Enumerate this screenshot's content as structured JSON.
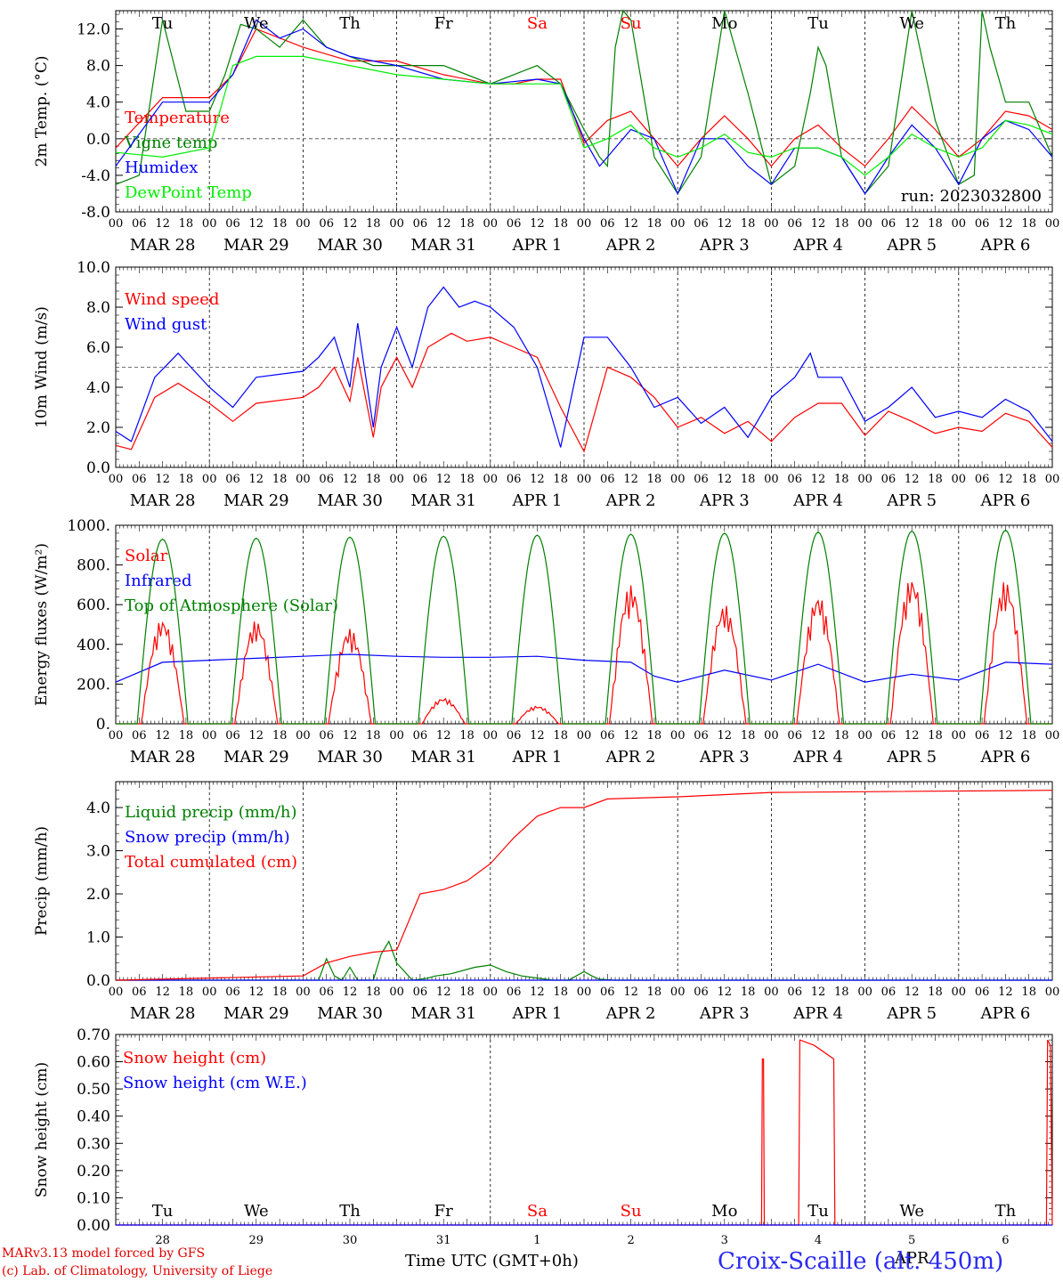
{
  "chart_data": [
    {
      "type": "line",
      "ylabel": "2m Temp. (°C)",
      "ylim": [
        -8,
        14
      ],
      "yticks": [
        "-8.0",
        "-4.0",
        "0.0",
        "4.0",
        "8.0",
        "12.0"
      ],
      "ref_line": 0,
      "run_label": "run: 2023032800",
      "weekdays": [
        "Tu",
        "We",
        "Th",
        "Fr",
        "Sa",
        "Su",
        "Mo",
        "Tu",
        "We",
        "Th"
      ],
      "series": [
        {
          "name": "Temperature",
          "color": "#ff0000",
          "x": [
            0,
            12,
            24,
            30,
            36,
            48,
            60,
            72,
            84,
            96,
            102,
            108,
            114,
            120,
            126,
            132,
            138,
            144,
            150,
            156,
            162,
            168,
            174,
            180,
            186,
            192,
            198,
            204,
            210,
            216,
            222,
            228,
            234,
            240
          ],
          "y": [
            -1,
            4.5,
            4.5,
            7,
            12,
            10,
            8.5,
            8.5,
            7,
            6,
            6,
            6.5,
            6.5,
            -0.5,
            2,
            3,
            0,
            -3,
            0,
            2.5,
            0,
            -3,
            0,
            1.5,
            -1,
            -3,
            0,
            3.5,
            1,
            -2,
            0,
            3,
            2.5,
            1
          ]
        },
        {
          "name": "Vigne temp",
          "color": "#008000",
          "x": [
            0,
            6,
            12,
            18,
            24,
            28,
            32,
            36,
            42,
            48,
            54,
            60,
            66,
            72,
            84,
            96,
            108,
            114,
            120,
            124,
            126,
            128,
            130,
            132,
            138,
            144,
            150,
            156,
            162,
            168,
            174,
            178,
            180,
            182,
            186,
            192,
            198,
            204,
            210,
            216,
            220,
            222,
            224,
            228,
            234,
            240
          ],
          "y": [
            -5,
            -4,
            13,
            3,
            3,
            7,
            12.5,
            12,
            10,
            13,
            10,
            9,
            8,
            8,
            8,
            6,
            8,
            6,
            1,
            -2,
            -3,
            10,
            14,
            13,
            -2,
            -6,
            -2,
            14,
            5,
            -5,
            -3,
            5,
            10,
            8,
            -2,
            -6,
            -3,
            14,
            2,
            -5,
            -4,
            14,
            10,
            4,
            4,
            -2
          ]
        },
        {
          "name": "Humidex",
          "color": "#0000ff",
          "x": [
            0,
            12,
            24,
            30,
            36,
            42,
            48,
            54,
            60,
            72,
            84,
            96,
            108,
            114,
            120,
            124,
            126,
            132,
            138,
            144,
            150,
            156,
            162,
            168,
            174,
            180,
            186,
            192,
            198,
            204,
            210,
            216,
            222,
            228,
            234,
            240
          ],
          "y": [
            -3,
            4,
            4,
            7,
            13,
            11,
            12,
            10,
            9,
            8,
            6.5,
            6,
            6.5,
            6,
            0,
            -3,
            -2,
            1,
            0,
            -6,
            0,
            0,
            -3,
            -5,
            -1,
            -1,
            -2,
            -6,
            -2,
            1.5,
            -1,
            -5,
            0,
            2,
            1,
            -2
          ]
        },
        {
          "name": "DewPoint Temp",
          "color": "#00ee00",
          "x": [
            0,
            12,
            24,
            30,
            36,
            48,
            60,
            72,
            84,
            96,
            108,
            114,
            120,
            126,
            132,
            138,
            144,
            150,
            156,
            162,
            168,
            174,
            180,
            186,
            192,
            198,
            204,
            210,
            216,
            222,
            228,
            234,
            240
          ],
          "y": [
            -1.5,
            -2,
            -1,
            8,
            9,
            9,
            8,
            7,
            6.5,
            6,
            6,
            6,
            -1,
            0,
            1.5,
            -1,
            -2,
            -1,
            0.5,
            -1.5,
            -2,
            -1,
            -1,
            -2,
            -4,
            -2,
            0.5,
            -1,
            -2,
            -1,
            2,
            1.5,
            0.5
          ]
        }
      ]
    },
    {
      "type": "line",
      "ylabel": "10m Wind (m/s)",
      "ylim": [
        0,
        10
      ],
      "yticks": [
        "0.0",
        "2.0",
        "4.0",
        "6.0",
        "8.0",
        "10.0"
      ],
      "ref_line": 5,
      "series": [
        {
          "name": "Wind speed",
          "color": "#ff0000",
          "x": [
            0,
            4,
            10,
            16,
            24,
            30,
            36,
            48,
            52,
            56,
            60,
            62,
            66,
            68,
            72,
            76,
            80,
            86,
            90,
            96,
            102,
            108,
            114,
            120,
            126,
            132,
            138,
            144,
            150,
            156,
            162,
            168,
            174,
            180,
            186,
            192,
            198,
            204,
            210,
            216,
            222,
            228,
            234,
            240
          ],
          "y": [
            1.1,
            0.9,
            3.5,
            4.2,
            3.2,
            2.3,
            3.2,
            3.5,
            4,
            5,
            3.3,
            5.5,
            1.5,
            4,
            5.5,
            4,
            6,
            6.7,
            6.3,
            6.5,
            6,
            5.5,
            3,
            0.8,
            5,
            4.5,
            3.5,
            2,
            2.5,
            1.7,
            2.3,
            1.3,
            2.5,
            3.2,
            3.2,
            1.6,
            2.8,
            2.3,
            1.7,
            2,
            1.8,
            2.7,
            2.3,
            1
          ]
        },
        {
          "name": "Wind gust",
          "color": "#0000ff",
          "x": [
            0,
            4,
            10,
            16,
            24,
            30,
            36,
            48,
            52,
            56,
            60,
            62,
            66,
            68,
            72,
            76,
            80,
            84,
            88,
            92,
            96,
            102,
            108,
            114,
            120,
            126,
            132,
            138,
            144,
            150,
            156,
            162,
            168,
            174,
            178,
            180,
            186,
            192,
            198,
            204,
            210,
            216,
            222,
            228,
            234,
            240
          ],
          "y": [
            1.8,
            1.3,
            4.5,
            5.7,
            4,
            3,
            4.5,
            4.8,
            5.5,
            6.5,
            4,
            7.2,
            2,
            5,
            7,
            5,
            8,
            9,
            8,
            8.3,
            8,
            7,
            5,
            1,
            6.5,
            6.5,
            5,
            3,
            3.5,
            2.2,
            3,
            1.5,
            3.5,
            4.5,
            5.7,
            4.5,
            4.5,
            2.3,
            3,
            4,
            2.5,
            2.8,
            2.5,
            3.4,
            2.8,
            1.3
          ]
        }
      ]
    },
    {
      "type": "line",
      "ylabel": "Energy fluxes (W/m²)",
      "ylim": [
        0,
        1000
      ],
      "yticks": [
        "0.",
        "200.",
        "400.",
        "600.",
        "800.",
        "1000."
      ],
      "series": [
        {
          "name": "Solar",
          "color": "#ff0000",
          "peaks": [
            530,
            520,
            480,
            130,
            90,
            700,
            600,
            650,
            740,
            720
          ]
        },
        {
          "name": "Infrared",
          "color": "#0000ff",
          "x": [
            0,
            12,
            24,
            36,
            48,
            60,
            72,
            84,
            96,
            108,
            120,
            132,
            138,
            144,
            156,
            168,
            180,
            192,
            204,
            216,
            228,
            240
          ],
          "y": [
            210,
            310,
            320,
            330,
            340,
            350,
            340,
            335,
            335,
            340,
            320,
            310,
            240,
            210,
            270,
            220,
            300,
            210,
            250,
            220,
            310,
            300
          ]
        },
        {
          "name": "Top of Atmosphere (Solar)",
          "color": "#008000",
          "peaks": [
            930,
            935,
            940,
            945,
            950,
            955,
            960,
            965,
            970,
            975
          ]
        }
      ]
    },
    {
      "type": "line",
      "ylabel": "Precip (mm/h)",
      "ylim": [
        0,
        4.6
      ],
      "yticks": [
        "0.0",
        "1.0",
        "2.0",
        "3.0",
        "4.0"
      ],
      "series": [
        {
          "name": "Liquid precip (mm/h)",
          "color": "#008000",
          "x": [
            0,
            48,
            52,
            54,
            56,
            58,
            60,
            62,
            66,
            68,
            70,
            72,
            74,
            76,
            78,
            80,
            82,
            86,
            92,
            96,
            100,
            104,
            108,
            112,
            116,
            120,
            122,
            124,
            128,
            240
          ],
          "y": [
            0,
            0,
            0,
            0.5,
            0.1,
            0,
            0.3,
            0,
            0,
            0.6,
            0.9,
            0.4,
            0.2,
            0,
            0.02,
            0.05,
            0.1,
            0.15,
            0.3,
            0.35,
            0.2,
            0.1,
            0.05,
            0,
            0,
            0.2,
            0.1,
            0.02,
            0,
            0
          ]
        },
        {
          "name": "Snow precip (mm/h)",
          "color": "#0000ff",
          "x": [
            0,
            240
          ],
          "y": [
            0,
            0
          ]
        },
        {
          "name": "Total cumulated (cm)",
          "color": "#ff0000",
          "x": [
            0,
            24,
            48,
            54,
            60,
            66,
            72,
            78,
            84,
            90,
            96,
            102,
            108,
            114,
            120,
            126,
            144,
            168,
            240
          ],
          "y": [
            0,
            0.05,
            0.1,
            0.4,
            0.55,
            0.65,
            0.7,
            2,
            2.1,
            2.3,
            2.7,
            3.3,
            3.8,
            4,
            4,
            4.2,
            4.25,
            4.35,
            4.4
          ]
        }
      ]
    },
    {
      "type": "line",
      "ylabel": "Snow height (cm)",
      "xlabel": "Time UTC (GMT+0h)",
      "ylim": [
        0,
        0.7
      ],
      "yticks": [
        "0.00",
        "0.10",
        "0.20",
        "0.30",
        "0.40",
        "0.50",
        "0.60",
        "0.70"
      ],
      "weekdays": [
        "Tu",
        "We",
        "Th",
        "Fr",
        "Sa",
        "Su",
        "Mo",
        "Tu",
        "We",
        "Th"
      ],
      "day_numbers": [
        "28",
        "29",
        "30",
        "31",
        "1",
        "2",
        "3",
        "4",
        "5",
        "6"
      ],
      "month_label": "APR",
      "series": [
        {
          "name": "Snow height (cm)",
          "color": "#ff0000",
          "x": [
            0,
            165.5,
            165.7,
            166,
            166.2,
            175,
            175.3,
            179,
            184,
            184.3,
            238.5,
            238.8,
            239.5,
            240
          ],
          "y": [
            0,
            0,
            0.61,
            0.61,
            0,
            0,
            0.68,
            0.66,
            0.61,
            0,
            0,
            0.68,
            0.66,
            0
          ]
        },
        {
          "name": "Snow height (cm W.E.)",
          "color": "#0000ff",
          "x": [
            0,
            240
          ],
          "y": [
            0,
            0
          ]
        }
      ]
    }
  ],
  "x_axis": {
    "hour_ticks": [
      "00",
      "06",
      "12",
      "18"
    ],
    "end_tick": "00",
    "dates": [
      "MAR 28",
      "MAR 29",
      "MAR 30",
      "MAR 31",
      "APR  1",
      "APR  2",
      "APR  3",
      "APR  4",
      "APR  5",
      "APR  6"
    ]
  },
  "weekday_colors": {
    "weekday": "#000000",
    "weekend": "#ff0000"
  },
  "footer": {
    "credit_line1": "MARv3.13 model forced by GFS",
    "credit_line2": "(c) Lab. of Climatology, University of Liege",
    "station": "Croix-Scaille (alt. 450m)"
  }
}
